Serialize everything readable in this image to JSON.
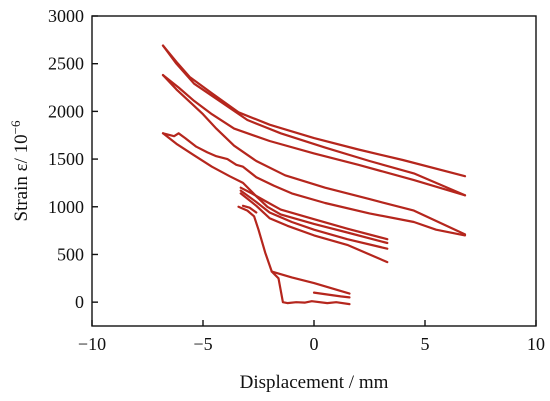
{
  "chart_data": {
    "type": "line",
    "xlabel": "Displacement / mm",
    "ylabel": "Strain ε/ 10",
    "ylabel_exponent": "−6",
    "xlim": [
      -10,
      10
    ],
    "ylim": [
      -250,
      3000
    ],
    "xticks": [
      -10,
      -5,
      0,
      5,
      10
    ],
    "yticks": [
      0,
      500,
      1000,
      1500,
      2000,
      2500,
      3000
    ],
    "xtick_labels": [
      "−10",
      "−5",
      "0",
      "5",
      "10"
    ],
    "ytick_labels": [
      "0",
      "500",
      "1000",
      "1500",
      "2000",
      "2500",
      "3000"
    ],
    "grid": false,
    "line_color": "#b5261d",
    "series": [
      {
        "values": [
          [
            -6.8,
            2690
          ],
          [
            -6.2,
            2520
          ],
          [
            -5.6,
            2360
          ],
          [
            -4.6,
            2190
          ],
          [
            -3.4,
            1990
          ],
          [
            -2,
            1860
          ],
          [
            0,
            1720
          ],
          [
            2,
            1600
          ],
          [
            4,
            1490
          ],
          [
            6.8,
            1320
          ]
        ]
      },
      {
        "values": [
          [
            -6.8,
            2690
          ],
          [
            -6.2,
            2500
          ],
          [
            -5.4,
            2290
          ],
          [
            -4.2,
            2100
          ],
          [
            -3,
            1910
          ],
          [
            -1.5,
            1770
          ],
          [
            0.5,
            1620
          ],
          [
            2.5,
            1480
          ],
          [
            4.5,
            1350
          ],
          [
            6.8,
            1120
          ]
        ]
      },
      {
        "values": [
          [
            -6.8,
            2380
          ],
          [
            -6.1,
            2250
          ],
          [
            -5.4,
            2110
          ],
          [
            -4.6,
            1970
          ],
          [
            -3.6,
            1820
          ],
          [
            -2,
            1690
          ],
          [
            0,
            1560
          ],
          [
            2,
            1440
          ],
          [
            4.5,
            1280
          ],
          [
            6.8,
            1120
          ]
        ]
      },
      {
        "values": [
          [
            -6.8,
            2380
          ],
          [
            -6.2,
            2230
          ],
          [
            -5.5,
            2080
          ],
          [
            -5,
            1970
          ],
          [
            -4.4,
            1820
          ],
          [
            -3.6,
            1640
          ],
          [
            -2.6,
            1480
          ],
          [
            -1.3,
            1330
          ],
          [
            0.5,
            1200
          ],
          [
            2.5,
            1080
          ],
          [
            4.5,
            960
          ],
          [
            6.8,
            710
          ]
        ]
      },
      {
        "values": [
          [
            -6.8,
            1770
          ],
          [
            -6.3,
            1740
          ],
          [
            -6.1,
            1770
          ],
          [
            -5.8,
            1720
          ],
          [
            -5.3,
            1630
          ],
          [
            -4.8,
            1570
          ],
          [
            -4.4,
            1530
          ],
          [
            -3.9,
            1500
          ],
          [
            -3.5,
            1440
          ],
          [
            -3.2,
            1420
          ],
          [
            -2.6,
            1310
          ],
          [
            -1.8,
            1220
          ],
          [
            -1,
            1140
          ],
          [
            0.5,
            1040
          ],
          [
            2.5,
            930
          ],
          [
            4.5,
            840
          ],
          [
            5.5,
            760
          ],
          [
            6.8,
            700
          ]
        ]
      },
      {
        "values": [
          [
            -6.8,
            1770
          ],
          [
            -6.2,
            1660
          ],
          [
            -5.4,
            1540
          ],
          [
            -4.6,
            1420
          ],
          [
            -3.8,
            1320
          ],
          [
            -3.2,
            1250
          ],
          [
            -2.6,
            1110
          ],
          [
            -2.1,
            1000
          ],
          [
            -1.5,
            920
          ],
          [
            0,
            820
          ],
          [
            1.5,
            730
          ],
          [
            3.3,
            620
          ]
        ]
      },
      {
        "values": [
          [
            -3.3,
            1200
          ],
          [
            -2.8,
            1140
          ],
          [
            -2.2,
            1060
          ],
          [
            -1.5,
            970
          ],
          [
            0,
            870
          ],
          [
            1.5,
            770
          ],
          [
            3.3,
            660
          ]
        ]
      },
      {
        "values": [
          [
            -3.3,
            1170
          ],
          [
            -2.6,
            1050
          ],
          [
            -2,
            940
          ],
          [
            -1,
            840
          ],
          [
            0,
            760
          ],
          [
            1.5,
            660
          ],
          [
            3.3,
            560
          ]
        ]
      },
      {
        "values": [
          [
            -3.3,
            1140
          ],
          [
            -2.6,
            1010
          ],
          [
            -2,
            880
          ],
          [
            -1.2,
            800
          ],
          [
            0,
            700
          ],
          [
            1.5,
            600
          ],
          [
            3.3,
            420
          ]
        ]
      },
      {
        "values": [
          [
            -3.4,
            1000
          ],
          [
            -3,
            960
          ],
          [
            -2.7,
            900
          ],
          [
            -2.5,
            760
          ],
          [
            -2.2,
            520
          ],
          [
            -1.9,
            320
          ],
          [
            -1.6,
            250
          ],
          [
            -1.4,
            0
          ],
          [
            -1.2,
            -10
          ],
          [
            -0.8,
            0
          ],
          [
            -0.4,
            -5
          ],
          [
            -0.1,
            10
          ],
          [
            0.6,
            -10
          ],
          [
            1,
            0
          ],
          [
            1.6,
            -20
          ]
        ]
      },
      {
        "values": [
          [
            -1.9,
            320
          ],
          [
            -1,
            260
          ],
          [
            0,
            200
          ],
          [
            1.6,
            90
          ]
        ]
      },
      {
        "values": [
          [
            0,
            100
          ],
          [
            0.6,
            80
          ],
          [
            1.2,
            60
          ],
          [
            1.6,
            50
          ]
        ]
      },
      {
        "values": [
          [
            -3.2,
            1010
          ],
          [
            -2.9,
            990
          ],
          [
            -2.6,
            940
          ]
        ]
      }
    ]
  }
}
